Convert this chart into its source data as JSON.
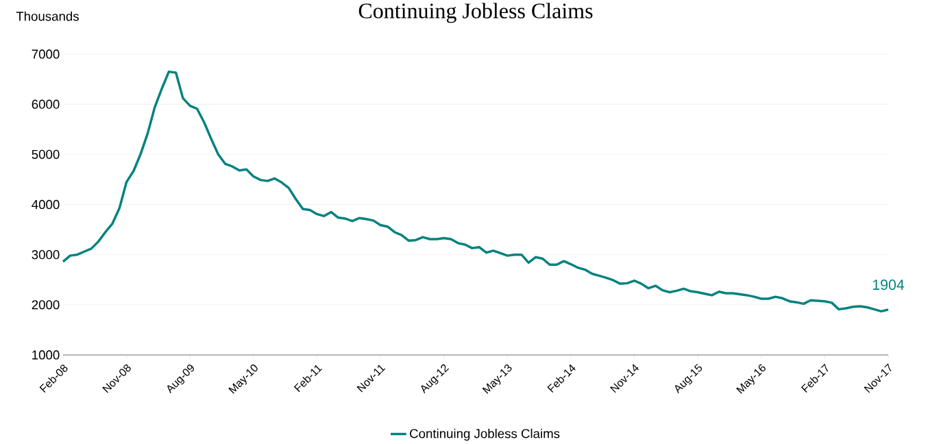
{
  "chart_data": {
    "type": "line",
    "title": "Continuing  Jobless Claims",
    "ylabel": "Thousands",
    "categories": [
      "Feb-08",
      null,
      null,
      null,
      null,
      null,
      null,
      null,
      null,
      "Nov-08",
      null,
      null,
      null,
      null,
      null,
      null,
      null,
      null,
      "Aug-09",
      null,
      null,
      null,
      null,
      null,
      null,
      null,
      null,
      "May-10",
      null,
      null,
      null,
      null,
      null,
      null,
      null,
      null,
      "Feb-11",
      null,
      null,
      null,
      null,
      null,
      null,
      null,
      null,
      "Nov-11",
      null,
      null,
      null,
      null,
      null,
      null,
      null,
      null,
      "Aug-12",
      null,
      null,
      null,
      null,
      null,
      null,
      null,
      null,
      "May-13",
      null,
      null,
      null,
      null,
      null,
      null,
      null,
      null,
      "Feb-14",
      null,
      null,
      null,
      null,
      null,
      null,
      null,
      null,
      "Nov-14",
      null,
      null,
      null,
      null,
      null,
      null,
      null,
      null,
      "Aug-15",
      null,
      null,
      null,
      null,
      null,
      null,
      null,
      null,
      "May-16",
      null,
      null,
      null,
      null,
      null,
      null,
      null,
      null,
      "Feb-17",
      null,
      null,
      null,
      null,
      null,
      null,
      null,
      null,
      "Nov-17"
    ],
    "series": [
      {
        "name": "Continuing Jobless Claims",
        "color": "#00827f",
        "values": [
          2860,
          2980,
          3000,
          3060,
          3120,
          3260,
          3450,
          3620,
          3930,
          4450,
          4670,
          5010,
          5420,
          5940,
          6310,
          6650,
          6630,
          6120,
          5970,
          5910,
          5640,
          5310,
          5000,
          4810,
          4760,
          4680,
          4700,
          4560,
          4490,
          4470,
          4520,
          4440,
          4330,
          4110,
          3910,
          3890,
          3810,
          3770,
          3850,
          3740,
          3720,
          3670,
          3730,
          3710,
          3680,
          3590,
          3560,
          3450,
          3390,
          3280,
          3290,
          3350,
          3310,
          3310,
          3330,
          3310,
          3230,
          3200,
          3130,
          3150,
          3040,
          3080,
          3030,
          2980,
          3000,
          3000,
          2840,
          2950,
          2920,
          2800,
          2800,
          2870,
          2810,
          2740,
          2700,
          2620,
          2580,
          2540,
          2490,
          2420,
          2430,
          2480,
          2420,
          2330,
          2380,
          2290,
          2250,
          2280,
          2320,
          2270,
          2250,
          2220,
          2190,
          2260,
          2230,
          2230,
          2210,
          2190,
          2160,
          2120,
          2120,
          2160,
          2130,
          2070,
          2050,
          2020,
          2090,
          2080,
          2070,
          2040,
          1910,
          1930,
          1960,
          1970,
          1950,
          1910,
          1870,
          1904
        ]
      }
    ],
    "ylim": [
      1000,
      7000
    ],
    "yticks": [
      1000,
      2000,
      3000,
      4000,
      5000,
      6000,
      7000
    ],
    "grid": "y",
    "legend": "bottom",
    "annotations": [
      {
        "text": "1904",
        "x": "Nov-17",
        "y": 1904
      }
    ]
  }
}
